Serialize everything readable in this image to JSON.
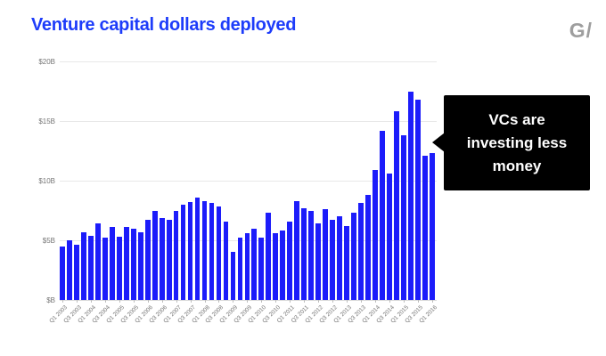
{
  "header": {
    "title": "Venture capital dollars deployed",
    "title_color": "#1d3cfa",
    "logo": "G/",
    "logo_color": "#9e9e9e"
  },
  "callout": {
    "lines": [
      "VCs are",
      "investing less",
      "money"
    ],
    "bg_color": "#000000",
    "text_color": "#ffffff"
  },
  "chart_data": {
    "type": "bar",
    "title": "Venture capital dollars deployed",
    "bar_color": "#1c1cfa",
    "axis_text_color": "#757575",
    "grid": true,
    "legend": "none",
    "ylim": [
      0,
      20
    ],
    "y_ticks": [
      {
        "label": "$20B",
        "value": 20
      },
      {
        "label": "$15B",
        "value": 15
      },
      {
        "label": "$10B",
        "value": 10
      },
      {
        "label": "$5B",
        "value": 5
      },
      {
        "label": "$B",
        "value": 0
      }
    ],
    "x_label_every": 2,
    "categories": [
      "Q1 2003",
      "Q2 2003",
      "Q3 2003",
      "Q4 2003",
      "Q1 2004",
      "Q2 2004",
      "Q3 2004",
      "Q4 2004",
      "Q1 2005",
      "Q2 2005",
      "Q3 2005",
      "Q4 2005",
      "Q1 2006",
      "Q2 2006",
      "Q3 2006",
      "Q4 2006",
      "Q1 2007",
      "Q2 2007",
      "Q3 2007",
      "Q4 2007",
      "Q1 2008",
      "Q2 2008",
      "Q3 2008",
      "Q4 2008",
      "Q1 2009",
      "Q2 2009",
      "Q3 2009",
      "Q4 2009",
      "Q1 2010",
      "Q2 2010",
      "Q3 2010",
      "Q4 2010",
      "Q1 2011",
      "Q2 2011",
      "Q3 2011",
      "Q4 2011",
      "Q1 2012",
      "Q2 2012",
      "Q3 2012",
      "Q4 2012",
      "Q1 2013",
      "Q2 2013",
      "Q3 2013",
      "Q4 2013",
      "Q1 2014",
      "Q2 2014",
      "Q3 2014",
      "Q4 2014",
      "Q1 2015",
      "Q2 2015",
      "Q3 2015",
      "Q4 2015",
      "Q1 2016"
    ],
    "values": [
      4.5,
      5.0,
      4.6,
      5.7,
      5.4,
      6.4,
      5.2,
      6.1,
      5.3,
      6.1,
      6.0,
      5.7,
      6.7,
      7.5,
      6.9,
      6.7,
      7.5,
      8.0,
      8.2,
      8.6,
      8.3,
      8.1,
      7.8,
      6.6,
      4.0,
      5.2,
      5.6,
      6.0,
      5.2,
      7.3,
      5.6,
      5.8,
      6.6,
      8.3,
      7.7,
      7.5,
      6.4,
      7.6,
      6.7,
      7.0,
      6.2,
      7.3,
      8.1,
      8.8,
      10.9,
      14.2,
      10.6,
      15.8,
      13.8,
      17.5,
      16.8,
      12.1,
      12.3
    ]
  }
}
